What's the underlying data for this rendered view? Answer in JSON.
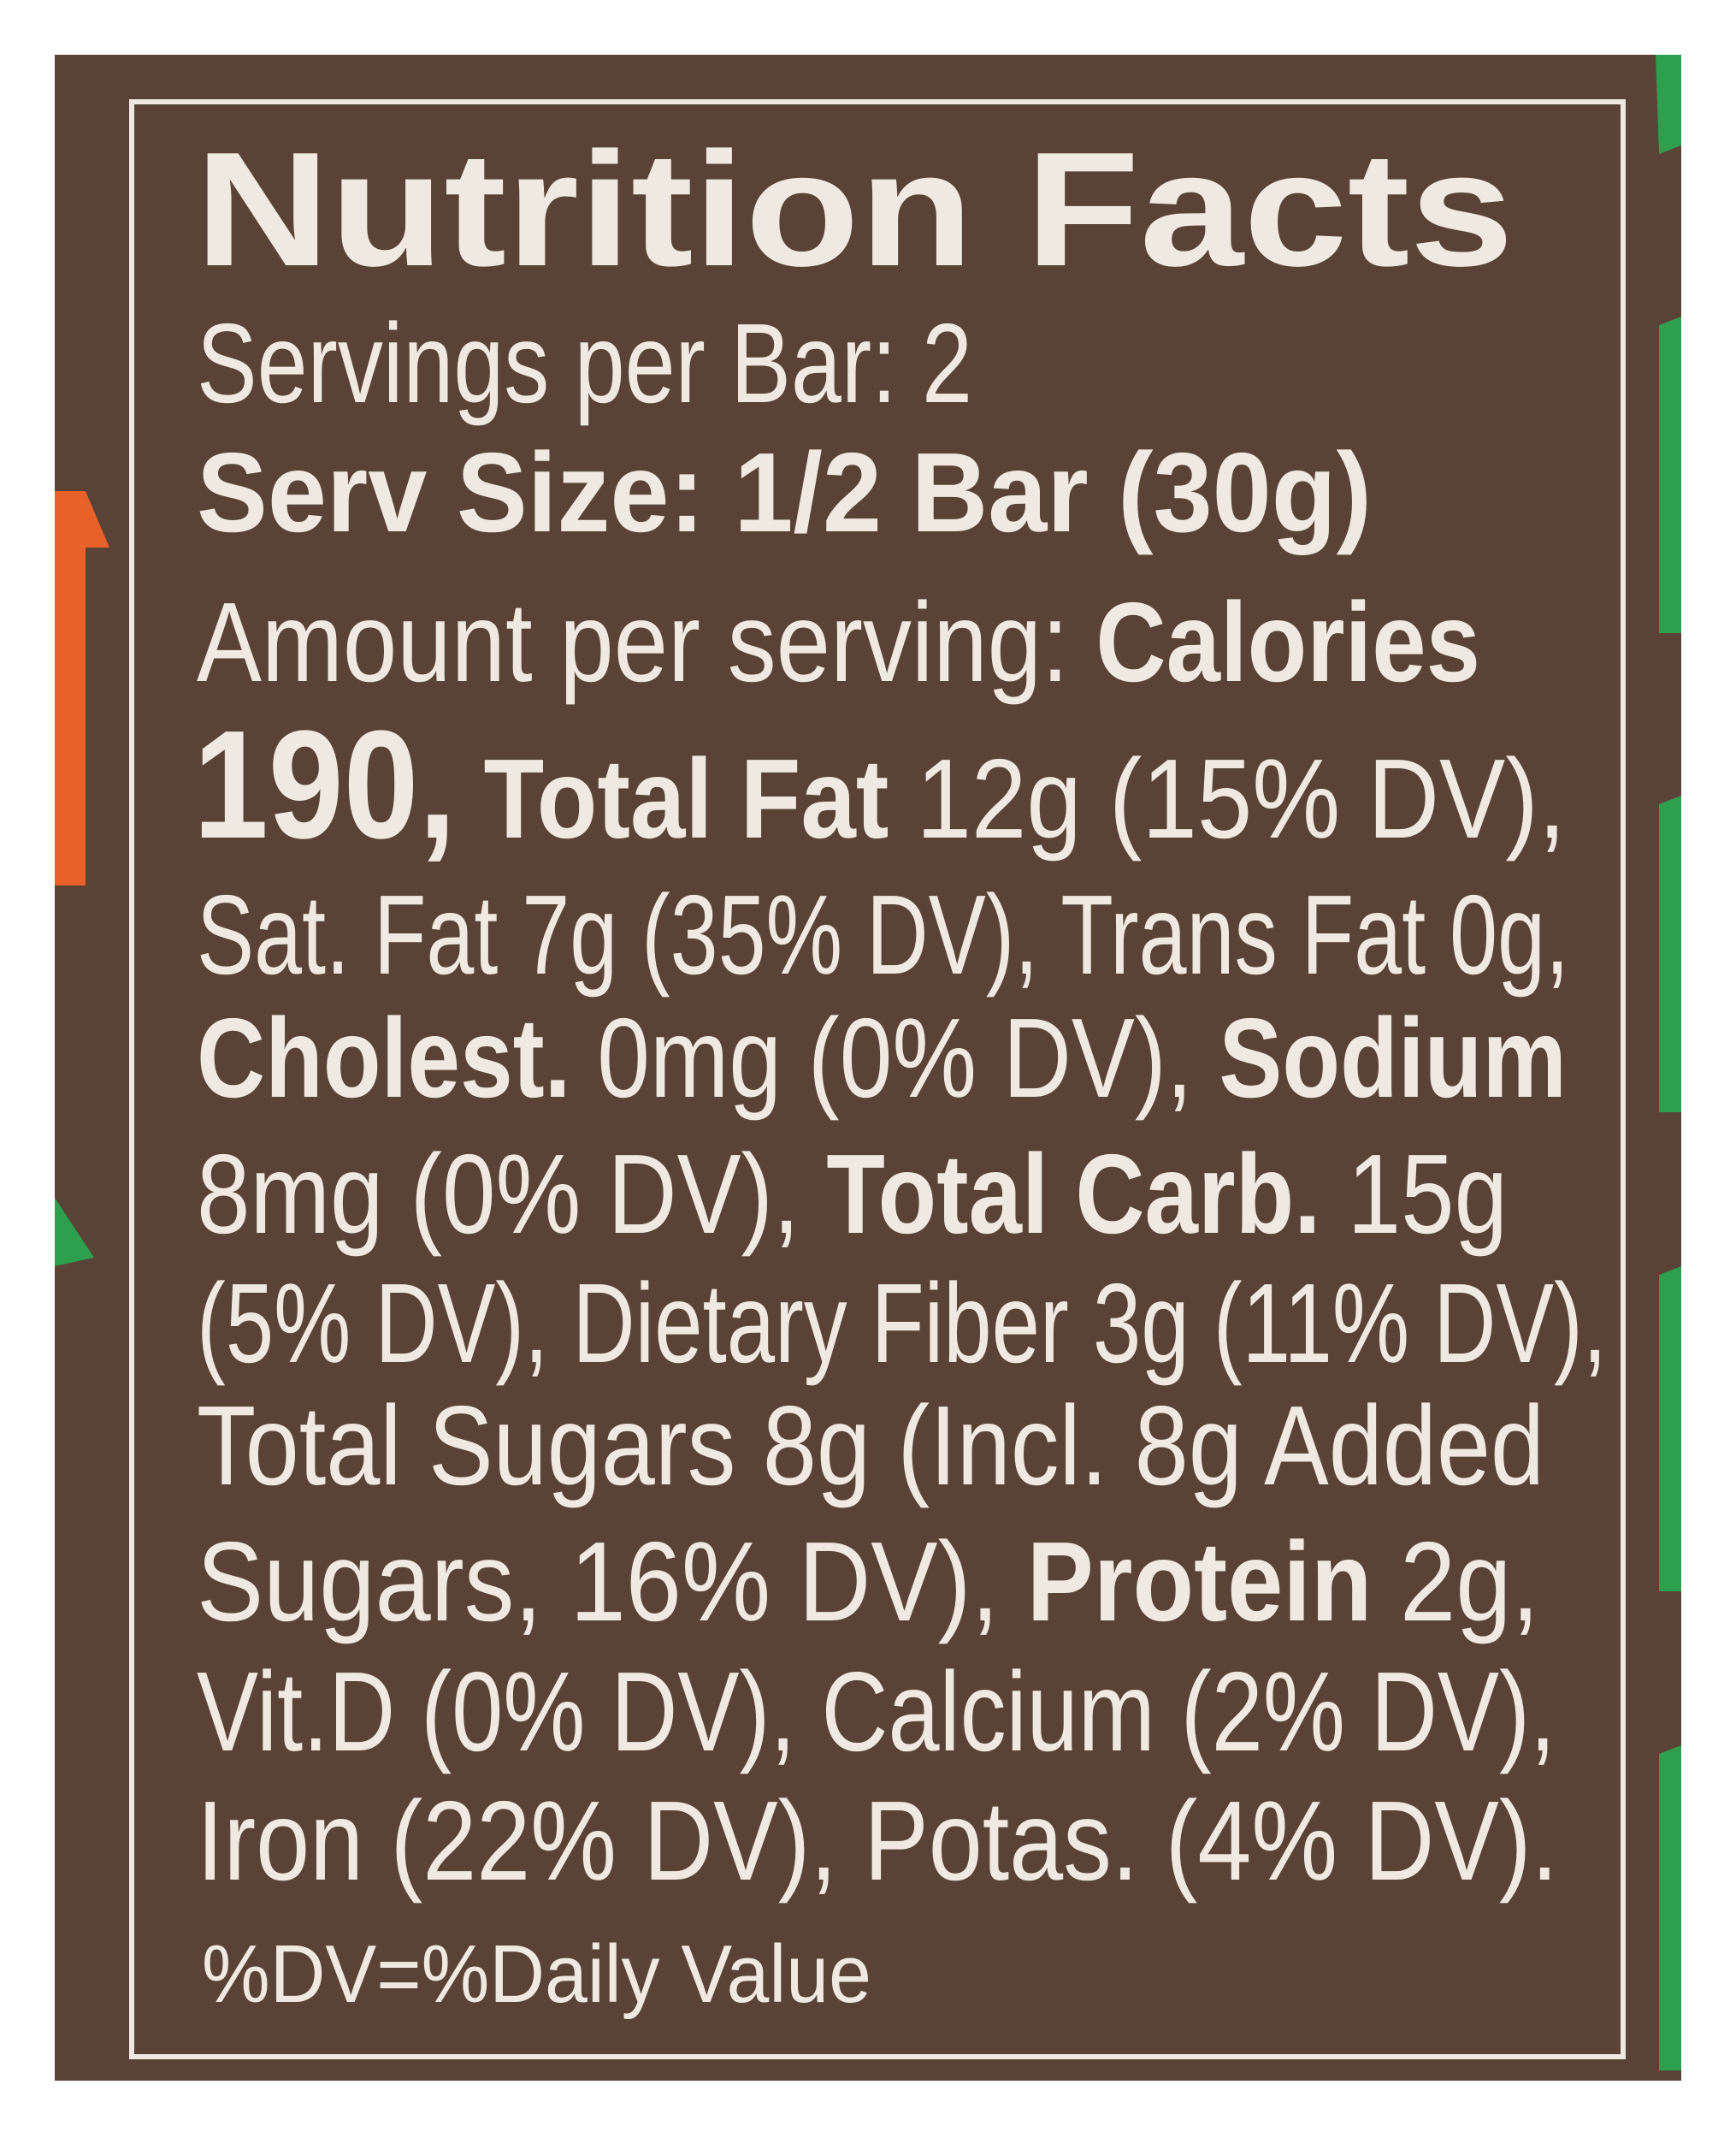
{
  "title": "Nutrition Facts",
  "lines": [
    [
      "Servings per Bar: 2"
    ],
    [
      "Serv Size: 1/2 Bar (30g)"
    ],
    [
      "Amount per serving: ",
      "Calories"
    ],
    [
      "190,",
      " Total Fat",
      " 12g (15% DV),"
    ],
    [
      "Sat. Fat 7g (35% DV), Trans Fat 0g,"
    ],
    [
      "Cholest.",
      " 0mg (0% DV), ",
      "Sodium"
    ],
    [
      "8mg (0% DV), ",
      "Total Carb.",
      " 15g"
    ],
    [
      "(5% DV), Dietary Fiber 3g (11% DV),"
    ],
    [
      "Total Sugars 8g (Incl. 8g Added"
    ],
    [
      "Sugars, 16% DV), ",
      "Protein",
      " 2g,"
    ],
    [
      "Vit.D (0% DV), Calcium (2% DV),"
    ],
    [
      "Iron (22% DV), Potas. (4% DV)."
    ]
  ],
  "footnote": "%DV=%Daily Value"
}
